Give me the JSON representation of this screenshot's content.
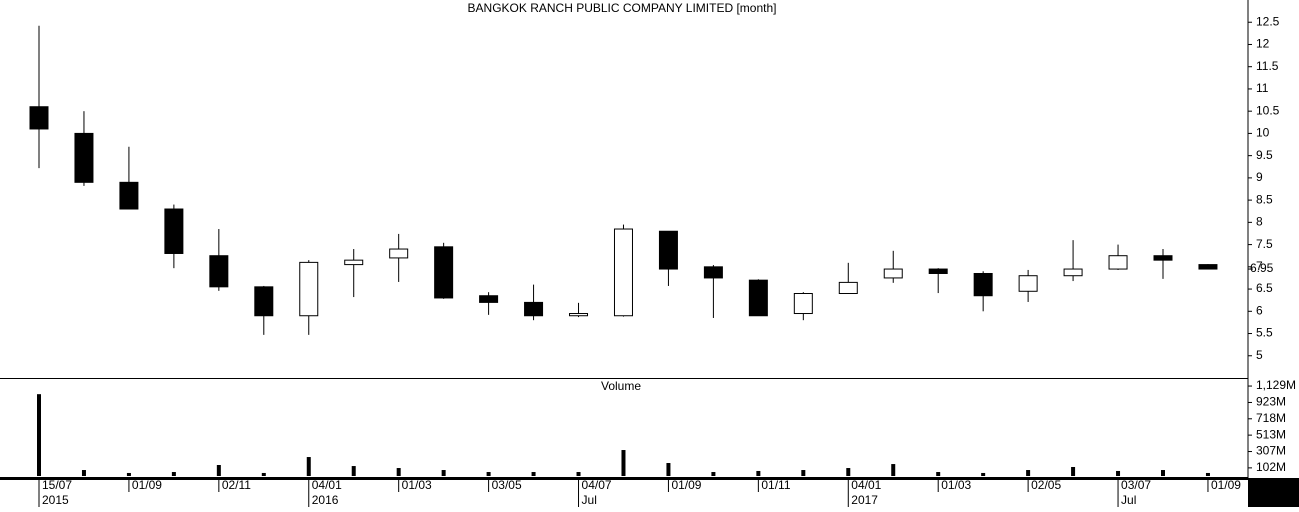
{
  "chart_data": [
    {
      "type": "candlestick",
      "title": "BANGKOK RANCH PUBLIC COMPANY LIMITED [month]",
      "open": [
        10.6,
        10.0,
        8.9,
        8.3,
        7.25,
        6.55,
        5.9,
        7.05,
        7.2,
        7.45,
        6.35,
        6.2,
        5.9,
        5.9,
        7.8,
        7.0,
        6.7,
        5.95,
        6.4,
        6.75,
        6.95,
        6.85,
        6.45,
        6.8,
        6.95,
        7.25,
        7.05
      ],
      "high": [
        12.42,
        10.5,
        9.7,
        8.4,
        7.85,
        6.57,
        7.15,
        7.4,
        7.74,
        7.54,
        6.43,
        6.6,
        6.19,
        7.95,
        7.8,
        7.04,
        6.72,
        6.43,
        7.09,
        7.36,
        6.97,
        6.9,
        6.93,
        7.6,
        7.5,
        7.4,
        7.06
      ],
      "low": [
        9.22,
        8.82,
        8.32,
        6.97,
        6.46,
        5.47,
        5.47,
        6.32,
        6.66,
        6.28,
        5.92,
        5.8,
        5.87,
        5.88,
        6.57,
        5.85,
        5.9,
        5.8,
        6.4,
        6.64,
        6.41,
        6.0,
        6.21,
        6.68,
        6.93,
        6.73,
        6.95
      ],
      "close": [
        10.1,
        8.9,
        8.3,
        7.3,
        6.55,
        5.9,
        7.1,
        7.15,
        7.4,
        6.3,
        6.2,
        5.9,
        5.95,
        7.85,
        6.95,
        6.75,
        5.9,
        6.4,
        6.65,
        6.95,
        6.85,
        6.35,
        6.8,
        6.95,
        7.25,
        7.15,
        6.95
      ],
      "up_color": "#ffffff",
      "down_color": "#000000",
      "last_price": 6.95,
      "ylim": [
        4.5,
        13
      ],
      "yticks": [
        5,
        5.5,
        6,
        6.5,
        7,
        7.5,
        8,
        8.5,
        9,
        9.5,
        10,
        10.5,
        11,
        11.5,
        12,
        12.5
      ]
    },
    {
      "type": "bar",
      "title": "Volume",
      "categories": [
        "15/07",
        null,
        "01/09",
        null,
        "02/11",
        null,
        "04/01",
        null,
        "01/03",
        null,
        "03/05",
        null,
        "04/07",
        null,
        "01/09",
        null,
        "01/11",
        null,
        "04/01",
        null,
        "01/03",
        null,
        "02/05",
        null,
        "03/07",
        null,
        "01/09"
      ],
      "periods": [
        "2015",
        null,
        null,
        null,
        null,
        null,
        "2016",
        null,
        null,
        null,
        null,
        null,
        "Jul",
        null,
        null,
        null,
        null,
        null,
        "2017",
        null,
        null,
        null,
        null,
        null,
        "Jul",
        null,
        null
      ],
      "values": [
        1027,
        75,
        38,
        50,
        138,
        38,
        238,
        125,
        100,
        75,
        50,
        50,
        50,
        326,
        163,
        50,
        63,
        75,
        100,
        150,
        50,
        38,
        75,
        113,
        63,
        75,
        38
      ],
      "color": "#000000",
      "ylim": [
        0,
        1230
      ],
      "yticks": [
        {
          "value": 102,
          "label": "102M"
        },
        {
          "value": 307,
          "label": "307M"
        },
        {
          "value": 513,
          "label": "513M"
        },
        {
          "value": 718,
          "label": "718M"
        },
        {
          "value": 923,
          "label": "923M"
        },
        {
          "value": 1129,
          "label": "1,129M"
        }
      ]
    }
  ]
}
